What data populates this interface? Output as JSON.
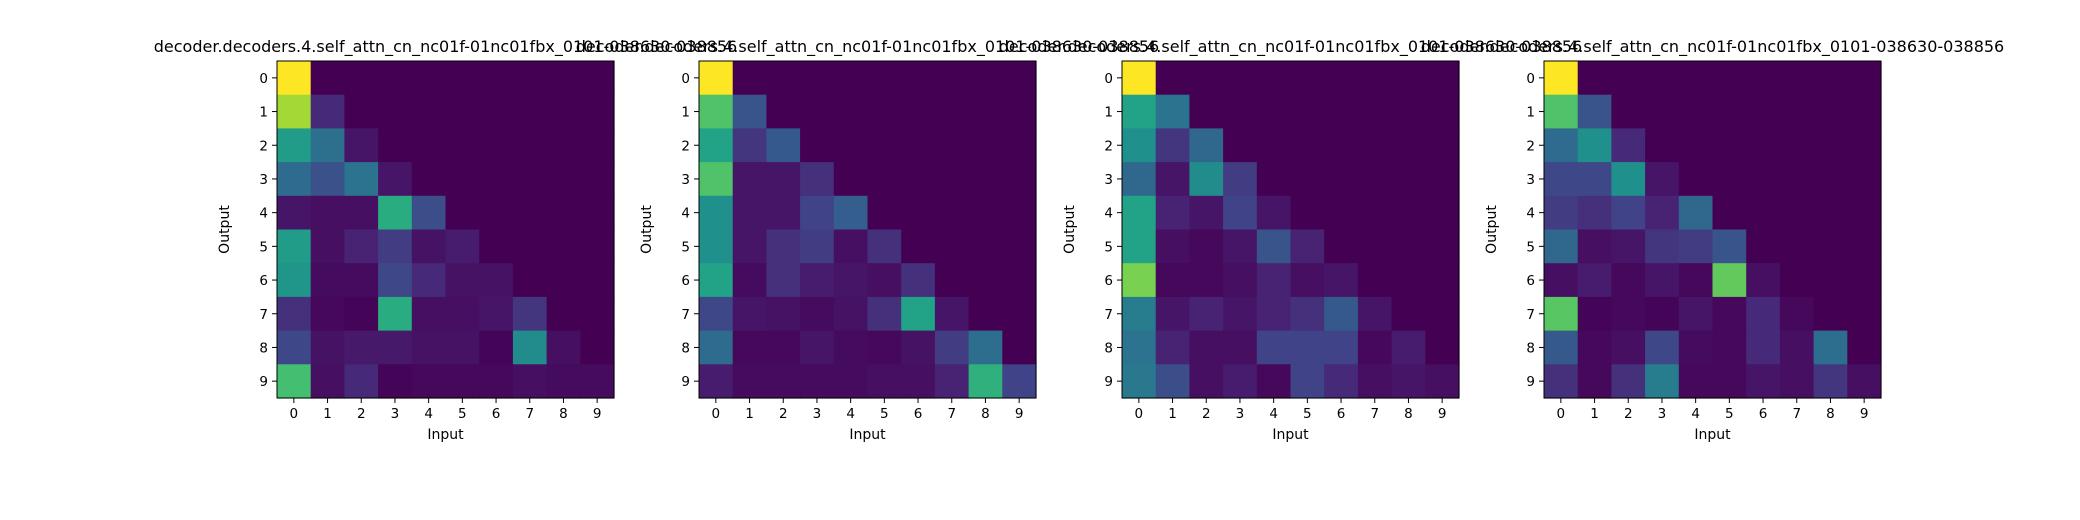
{
  "chart_data": [
    {
      "type": "heatmap",
      "title": "decoder.decoders.4.self_attn_cn_nc01f-01nc01fbx_0101-038630-038856",
      "xlabel": "Input",
      "ylabel": "Output",
      "x_ticks": [
        "0",
        "1",
        "2",
        "3",
        "4",
        "5",
        "6",
        "7",
        "8",
        "9"
      ],
      "y_ticks": [
        "0",
        "1",
        "2",
        "3",
        "4",
        "5",
        "6",
        "7",
        "8",
        "9"
      ],
      "colormap": "viridis",
      "values": [
        [
          1.0,
          0,
          0,
          0,
          0,
          0,
          0,
          0,
          0,
          0
        ],
        [
          0.86,
          0.12,
          0,
          0,
          0,
          0,
          0,
          0,
          0,
          0
        ],
        [
          0.55,
          0.37,
          0.06,
          0,
          0,
          0,
          0,
          0,
          0,
          0
        ],
        [
          0.35,
          0.25,
          0.38,
          0.06,
          0,
          0,
          0,
          0,
          0,
          0
        ],
        [
          0.06,
          0.04,
          0.04,
          0.62,
          0.24,
          0,
          0,
          0,
          0,
          0
        ],
        [
          0.55,
          0.04,
          0.1,
          0.18,
          0.05,
          0.08,
          0,
          0,
          0,
          0
        ],
        [
          0.52,
          0.03,
          0.03,
          0.22,
          0.12,
          0.05,
          0.05,
          0,
          0,
          0
        ],
        [
          0.14,
          0.02,
          0.01,
          0.62,
          0.04,
          0.04,
          0.06,
          0.16,
          0,
          0
        ],
        [
          0.22,
          0.05,
          0.07,
          0.07,
          0.05,
          0.05,
          0.01,
          0.48,
          0.04,
          0
        ],
        [
          0.7,
          0.04,
          0.12,
          0.01,
          0.02,
          0.02,
          0.02,
          0.04,
          0.03,
          0.03
        ]
      ]
    },
    {
      "type": "heatmap",
      "title": "decoder.decoders.4.self_attn_cn_nc01f-01nc01fbx_0101-038630-038856",
      "xlabel": "Input",
      "ylabel": "Output",
      "x_ticks": [
        "0",
        "1",
        "2",
        "3",
        "4",
        "5",
        "6",
        "7",
        "8",
        "9"
      ],
      "y_ticks": [
        "0",
        "1",
        "2",
        "3",
        "4",
        "5",
        "6",
        "7",
        "8",
        "9"
      ],
      "colormap": "viridis",
      "values": [
        [
          1.0,
          0,
          0,
          0,
          0,
          0,
          0,
          0,
          0,
          0
        ],
        [
          0.72,
          0.26,
          0,
          0,
          0,
          0,
          0,
          0,
          0,
          0
        ],
        [
          0.58,
          0.16,
          0.28,
          0,
          0,
          0,
          0,
          0,
          0,
          0
        ],
        [
          0.72,
          0.06,
          0.06,
          0.14,
          0,
          0,
          0,
          0,
          0,
          0
        ],
        [
          0.5,
          0.06,
          0.06,
          0.2,
          0.3,
          0,
          0,
          0,
          0,
          0
        ],
        [
          0.5,
          0.06,
          0.14,
          0.18,
          0.04,
          0.14,
          0,
          0,
          0,
          0
        ],
        [
          0.58,
          0.03,
          0.14,
          0.08,
          0.06,
          0.04,
          0.14,
          0,
          0,
          0
        ],
        [
          0.22,
          0.06,
          0.05,
          0.03,
          0.05,
          0.14,
          0.58,
          0.06,
          0,
          0
        ],
        [
          0.35,
          0.02,
          0.02,
          0.06,
          0.03,
          0.02,
          0.05,
          0.18,
          0.36,
          0
        ],
        [
          0.08,
          0.03,
          0.03,
          0.03,
          0.03,
          0.04,
          0.04,
          0.1,
          0.64,
          0.2
        ]
      ]
    },
    {
      "type": "heatmap",
      "title": "decoder.decoders.4.self_attn_cn_nc01f-01nc01fbx_0101-038630-038856",
      "xlabel": "Input",
      "ylabel": "Output",
      "x_ticks": [
        "0",
        "1",
        "2",
        "3",
        "4",
        "5",
        "6",
        "7",
        "8",
        "9"
      ],
      "y_ticks": [
        "0",
        "1",
        "2",
        "3",
        "4",
        "5",
        "6",
        "7",
        "8",
        "9"
      ],
      "colormap": "viridis",
      "values": [
        [
          1.0,
          0,
          0,
          0,
          0,
          0,
          0,
          0,
          0,
          0
        ],
        [
          0.58,
          0.38,
          0,
          0,
          0,
          0,
          0,
          0,
          0,
          0
        ],
        [
          0.5,
          0.16,
          0.34,
          0,
          0,
          0,
          0,
          0,
          0,
          0
        ],
        [
          0.34,
          0.06,
          0.48,
          0.18,
          0,
          0,
          0,
          0,
          0,
          0
        ],
        [
          0.58,
          0.1,
          0.06,
          0.2,
          0.06,
          0,
          0,
          0,
          0,
          0
        ],
        [
          0.58,
          0.04,
          0.02,
          0.06,
          0.26,
          0.1,
          0,
          0,
          0,
          0
        ],
        [
          0.8,
          0.02,
          0.02,
          0.04,
          0.1,
          0.04,
          0.06,
          0,
          0,
          0
        ],
        [
          0.42,
          0.06,
          0.1,
          0.06,
          0.1,
          0.14,
          0.28,
          0.06,
          0,
          0
        ],
        [
          0.38,
          0.1,
          0.04,
          0.04,
          0.2,
          0.2,
          0.2,
          0.02,
          0.08,
          0
        ],
        [
          0.4,
          0.24,
          0.04,
          0.08,
          0.02,
          0.2,
          0.12,
          0.04,
          0.06,
          0.04
        ]
      ]
    },
    {
      "type": "heatmap",
      "title": "decoder.decoders.4.self_attn_cn_nc01f-01nc01fbx_0101-038630-038856",
      "xlabel": "Input",
      "ylabel": "Output",
      "x_ticks": [
        "0",
        "1",
        "2",
        "3",
        "4",
        "5",
        "6",
        "7",
        "8",
        "9"
      ],
      "y_ticks": [
        "0",
        "1",
        "2",
        "3",
        "4",
        "5",
        "6",
        "7",
        "8",
        "9"
      ],
      "colormap": "viridis",
      "values": [
        [
          1.0,
          0,
          0,
          0,
          0,
          0,
          0,
          0,
          0,
          0
        ],
        [
          0.72,
          0.26,
          0,
          0,
          0,
          0,
          0,
          0,
          0,
          0
        ],
        [
          0.35,
          0.5,
          0.12,
          0,
          0,
          0,
          0,
          0,
          0,
          0
        ],
        [
          0.22,
          0.22,
          0.5,
          0.06,
          0,
          0,
          0,
          0,
          0,
          0
        ],
        [
          0.18,
          0.14,
          0.2,
          0.1,
          0.34,
          0,
          0,
          0,
          0,
          0
        ],
        [
          0.34,
          0.04,
          0.06,
          0.16,
          0.18,
          0.26,
          0,
          0,
          0,
          0
        ],
        [
          0.04,
          0.08,
          0.02,
          0.06,
          0.02,
          0.76,
          0.04,
          0,
          0,
          0
        ],
        [
          0.74,
          0.01,
          0.02,
          0.01,
          0.06,
          0.02,
          0.12,
          0.02,
          0,
          0
        ],
        [
          0.28,
          0.02,
          0.04,
          0.22,
          0.03,
          0.02,
          0.12,
          0.04,
          0.36,
          0
        ],
        [
          0.14,
          0.02,
          0.14,
          0.42,
          0.02,
          0.02,
          0.06,
          0.04,
          0.16,
          0.04
        ]
      ]
    }
  ]
}
